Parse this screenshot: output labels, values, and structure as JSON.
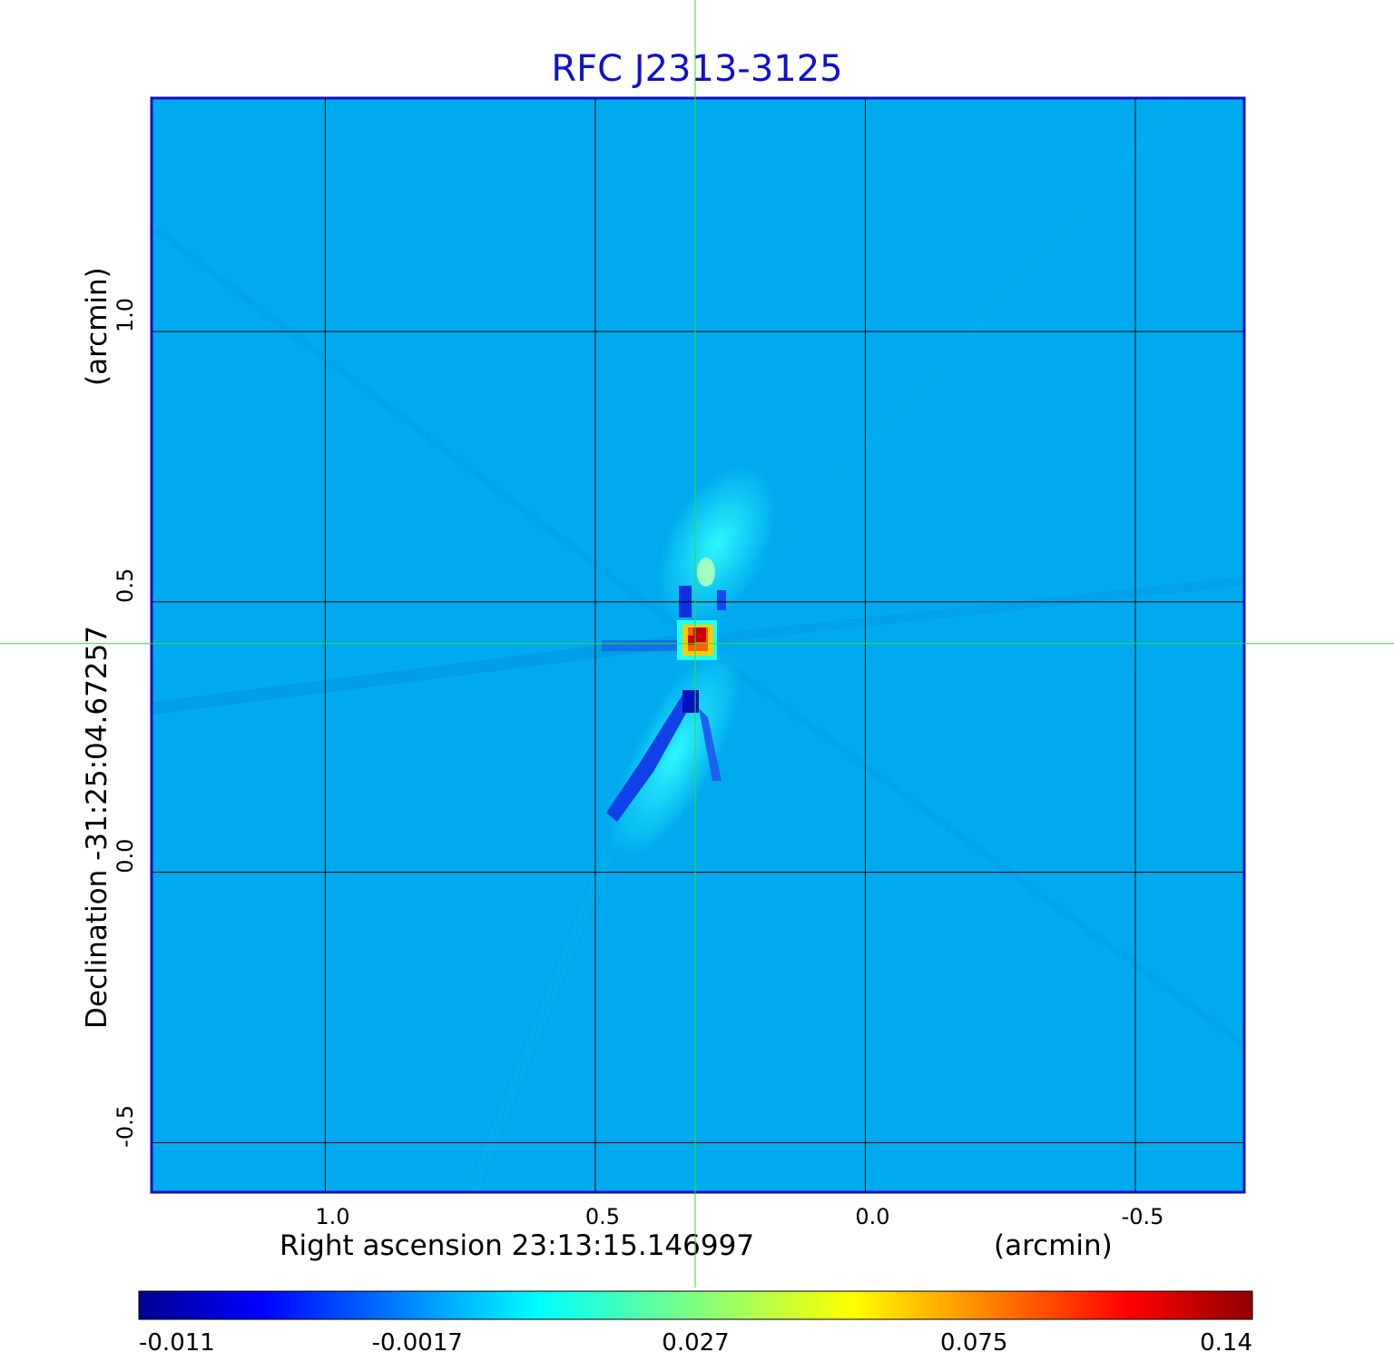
{
  "chart_data": {
    "type": "heatmap",
    "title": "RFC J2313-3125",
    "xlabel": "Right ascension  23:13:15.146997",
    "xunit": "(arcmin)",
    "ylabel": "Declination  -31:25:04.67257",
    "yunit": "(arcmin)",
    "xlim": [
      1.32,
      -0.7
    ],
    "ylim": [
      -0.59,
      1.43
    ],
    "x_ticks": [
      {
        "value": 1.0,
        "label": "1.0"
      },
      {
        "value": 0.5,
        "label": "0.5"
      },
      {
        "value": 0.0,
        "label": "0.0"
      },
      {
        "value": -0.5,
        "label": "-0.5"
      }
    ],
    "y_ticks": [
      {
        "value": 1.0,
        "label": "1.0"
      },
      {
        "value": 0.5,
        "label": "0.5"
      },
      {
        "value": 0.0,
        "label": "0.0"
      },
      {
        "value": -0.5,
        "label": "-0.5"
      }
    ],
    "grid": true,
    "crosshair": {
      "x": 0.315,
      "y": 0.423
    },
    "source_peak": {
      "x": 0.315,
      "y": 0.43,
      "value": 0.14
    },
    "colorbar": {
      "min": -0.011,
      "max": 0.14,
      "labels": [
        "-0.011",
        "-0.0017",
        "0.027",
        "0.075",
        "0.14"
      ],
      "colormap": "jet"
    }
  },
  "colors": {
    "background_map": "#00aaee",
    "title": "#1010d0",
    "frame": "#1010c0",
    "crosshair": "#33dd33",
    "grid": "#000000"
  }
}
